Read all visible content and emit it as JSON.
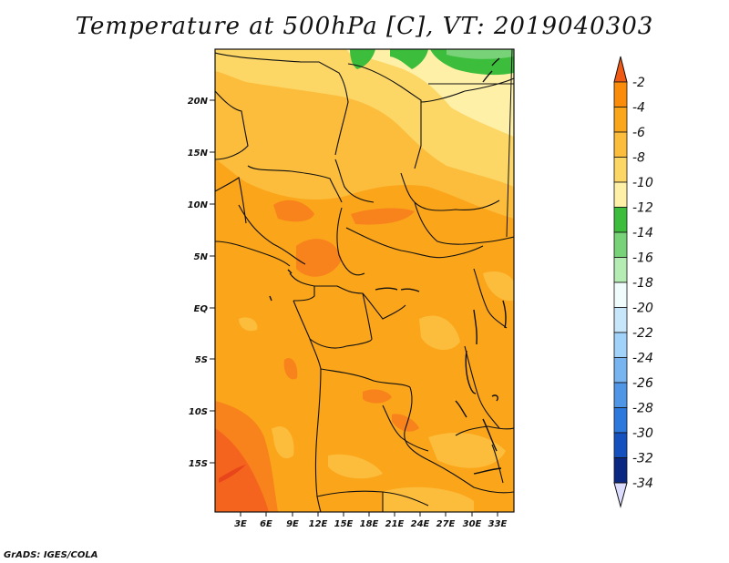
{
  "title": "Temperature at 500hPa [C], VT: 2019040303",
  "credit": "GrADS: IGES/COLA",
  "map": {
    "lat_ticks": [
      "20N",
      "15N",
      "10N",
      "5N",
      "EQ",
      "5S",
      "10S",
      "15S"
    ],
    "lon_ticks": [
      "3E",
      "6E",
      "9E",
      "12E",
      "15E",
      "18E",
      "21E",
      "24E",
      "27E",
      "30E",
      "33E"
    ]
  },
  "colorbar": {
    "labels": [
      "-2",
      "-4",
      "-6",
      "-8",
      "-10",
      "-12",
      "-14",
      "-16",
      "-18",
      "-20",
      "-22",
      "-24",
      "-26",
      "-28",
      "-30",
      "-32",
      "-34"
    ],
    "colors": [
      "#f05a14",
      "#fa8c0a",
      "#fba51a",
      "#fcbd3c",
      "#fdd766",
      "#fff0a8",
      "#3cbe3c",
      "#78d278",
      "#b4ecb4",
      "#f0fcfc",
      "#c8e6fa",
      "#a0d2fa",
      "#78b4f0",
      "#5096e6",
      "#2c78dc",
      "#1450be",
      "#0a2882",
      "#dcdcff"
    ]
  },
  "colors": {
    "ocean_warm": "#f8821c",
    "ocean_hot": "#f5641e",
    "base": "#fba51a",
    "mid": "#fcbd3c",
    "light": "#fdd766",
    "pale": "#fff0a8",
    "green": "#3cbe3c",
    "border": "#111111"
  }
}
